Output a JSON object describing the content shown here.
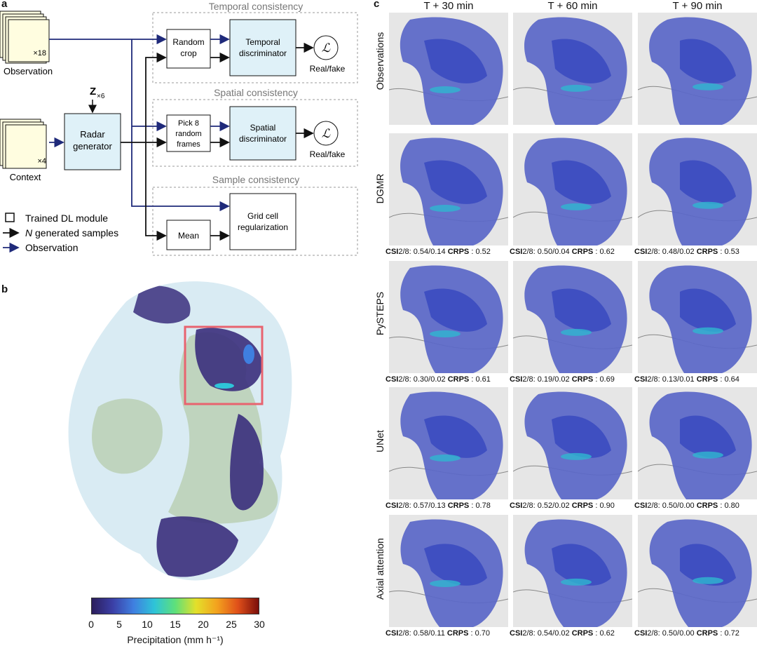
{
  "panels": {
    "a": "a",
    "b": "b",
    "c": "c"
  },
  "diagram": {
    "observation_stack_mult": "×18",
    "observation_label": "Observation",
    "context_stack_mult": "×4",
    "context_label": "Context",
    "z_label": "Z",
    "z_sub": "×6",
    "generator_line1": "Radar",
    "generator_line2": "generator",
    "temporal_group_title": "Temporal consistency",
    "spatial_group_title": "Spatial consistency",
    "sample_group_title": "Sample consistency",
    "random_crop_line1": "Random",
    "random_crop_line2": "crop",
    "temporal_disc_line1": "Temporal",
    "temporal_disc_line2": "discriminator",
    "pick_line1": "Pick 8",
    "pick_line2": "random",
    "pick_line3": "frames",
    "spatial_disc_line1": "Spatial",
    "spatial_disc_line2": "discriminator",
    "mean_label": "Mean",
    "grid_line1": "Grid cell",
    "grid_line2": "regularization",
    "loss_symbol": "ℒ",
    "real_fake_1": "Real/fake",
    "real_fake_2": "Real/fake",
    "legend_trained": "Trained DL module",
    "legend_generated_n": "N",
    "legend_generated_rest": " generated samples",
    "legend_observation": "Observation"
  },
  "colorbar": {
    "ticks": [
      "0",
      "5",
      "10",
      "15",
      "20",
      "25",
      "30"
    ],
    "label": "Precipitation (mm h⁻¹)",
    "stops": [
      "#2c1e5c",
      "#3b3fa6",
      "#3f7fe0",
      "#2ec4d8",
      "#5ee07a",
      "#e4e02a",
      "#f3a21e",
      "#e0501a",
      "#7a0e0a"
    ]
  },
  "grid": {
    "columns": [
      "T + 30 min",
      "T + 60 min",
      "T + 90 min"
    ],
    "rows": [
      {
        "label": "Observations",
        "metrics": []
      },
      {
        "label": "DGMR",
        "metrics": [
          {
            "csi": ": 0.54/0.14",
            "crps": ": 0.52"
          },
          {
            "csi": ": 0.50/0.04",
            "crps": ": 0.62"
          },
          {
            "csi": ": 0.48/0.02",
            "crps": ": 0.53"
          }
        ]
      },
      {
        "label": "PySTEPS",
        "metrics": [
          {
            "csi": ": 0.30/0.02",
            "crps": ": 0.61"
          },
          {
            "csi": ": 0.19/0.02",
            "crps": ": 0.69"
          },
          {
            "csi": ": 0.13/0.01",
            "crps": ": 0.64"
          }
        ]
      },
      {
        "label": "UNet",
        "metrics": [
          {
            "csi": ": 0.57/0.13",
            "crps": ": 0.78"
          },
          {
            "csi": ": 0.52/0.02",
            "crps": ": 0.90"
          },
          {
            "csi": ": 0.50/0.00",
            "crps": ": 0.80"
          }
        ]
      },
      {
        "label": "Axial attention",
        "metrics": [
          {
            "csi": ": 0.58/0.11",
            "crps": ": 0.70"
          },
          {
            "csi": ": 0.54/0.02",
            "crps": ": 0.62"
          },
          {
            "csi": ": 0.50/0.00",
            "crps": ": 0.72"
          }
        ]
      }
    ],
    "csi_prefix": "CSI",
    "csi_thresholds": "2/8",
    "crps_prefix": "CRPS"
  }
}
